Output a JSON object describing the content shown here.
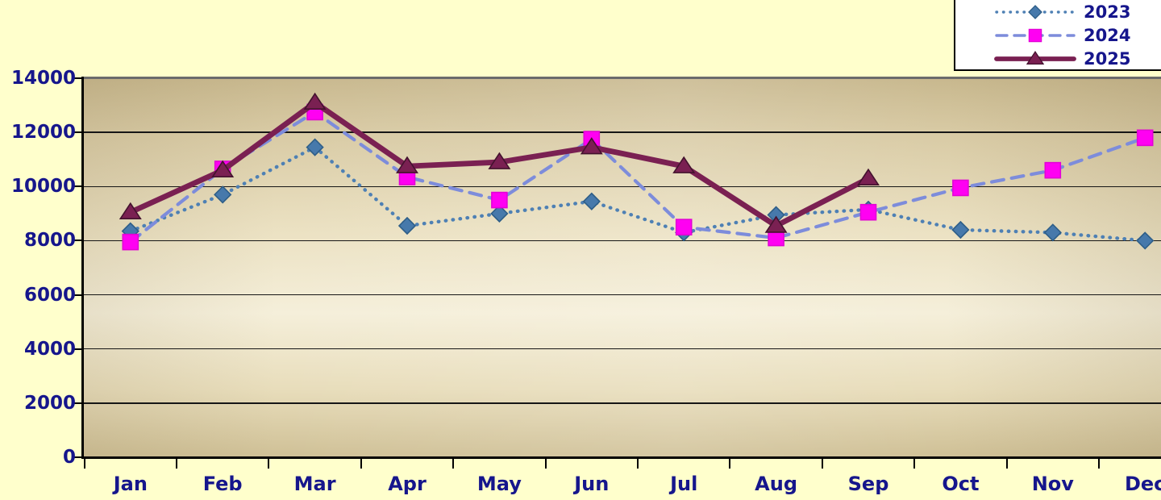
{
  "chart_data": {
    "type": "line",
    "categories": [
      "Jan",
      "Feb",
      "Mar",
      "Apr",
      "May",
      "Jun",
      "Jul",
      "Aug",
      "Sep",
      "Oct",
      "Nov",
      "Dec"
    ],
    "series": [
      {
        "name": "2023",
        "values": [
          8350,
          9700,
          11450,
          8550,
          9000,
          9450,
          8300,
          8950,
          9150,
          8400,
          8300,
          8000
        ],
        "line_color": "#4e80b4",
        "marker": "diamond",
        "marker_color": "#4779ab",
        "marker_edge": "#2e5e88",
        "line_style": "dotted"
      },
      {
        "name": "2024",
        "values": [
          7950,
          10650,
          12750,
          10350,
          9500,
          11750,
          8500,
          8100,
          9050,
          9950,
          10600,
          11800
        ],
        "line_color": "#7d8cdb",
        "marker": "square",
        "marker_color": "#ff00f2",
        "marker_edge": "#e300d6",
        "line_style": "dashed"
      },
      {
        "name": "2025",
        "values": [
          9050,
          10600,
          13100,
          10750,
          10900,
          11450,
          10750,
          8550,
          10300
        ],
        "line_color": "#7a2052",
        "marker": "triangle",
        "marker_color": "#7a2052",
        "marker_edge": "#43122e",
        "line_style": "solid"
      }
    ],
    "ylim": [
      0,
      14000
    ],
    "y_tick_labels": [
      "0",
      "2000",
      "4000",
      "6000",
      "8000",
      "10000",
      "12000",
      "14000"
    ],
    "grid": true,
    "legend_position": "top-right"
  },
  "colors": {
    "page_background": "#ffffcc",
    "plot_fill_light": "#f5efda",
    "plot_fill_dark": "#c8b88e",
    "grid_color": "#161616",
    "axis_color": "#000000",
    "label_text": "#16168c",
    "legend_background": "#ffffff",
    "legend_border": "#000000"
  }
}
